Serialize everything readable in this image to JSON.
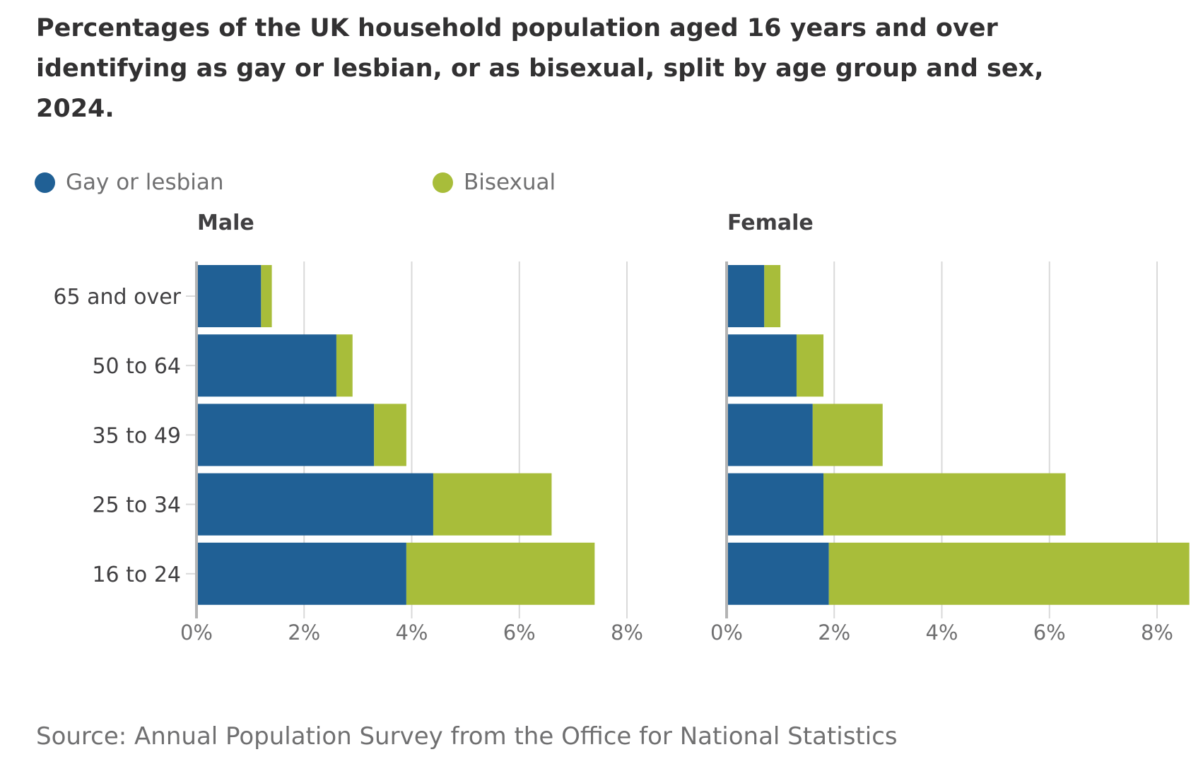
{
  "chart_data": {
    "type": "bar",
    "orientation": "horizontal",
    "stacked": true,
    "title": "Percentages of the UK household population aged 16 years and over identifying as gay or lesbian, or as bisexual, split by age group and sex, 2024.",
    "legend": {
      "placement": "top-left",
      "entries": [
        {
          "name": "Gay or lesbian",
          "color": "#206095"
        },
        {
          "name": "Bisexual",
          "color": "#A8BD3A"
        }
      ]
    },
    "categories": [
      "65 and over",
      "50 to 64",
      "35 to 49",
      "25 to 34",
      "16 to 24"
    ],
    "xlim": [
      0,
      8
    ],
    "xticks": [
      0,
      2,
      4,
      6,
      8
    ],
    "xtick_labels": [
      "0%",
      "2%",
      "4%",
      "6%",
      "8%"
    ],
    "grid": "vertical",
    "panels": [
      {
        "title": "Male",
        "series": [
          {
            "name": "Gay or lesbian",
            "values": [
              1.2,
              2.6,
              3.3,
              4.4,
              3.9
            ]
          },
          {
            "name": "Bisexual",
            "values": [
              0.2,
              0.3,
              0.6,
              2.2,
              3.5
            ]
          }
        ]
      },
      {
        "title": "Female",
        "series": [
          {
            "name": "Gay or lesbian",
            "values": [
              0.7,
              1.3,
              1.6,
              1.8,
              1.9
            ]
          },
          {
            "name": "Bisexual",
            "values": [
              0.3,
              0.5,
              1.3,
              4.5,
              6.7
            ]
          }
        ]
      }
    ],
    "source": "Source: Annual Population Survey from the Office for National Statistics"
  },
  "colors": {
    "gay_or_lesbian": "#206095",
    "bisexual": "#A8BD3A",
    "gridline": "#d9d9d9",
    "axis": "#b3b3b3",
    "tick_label": "#707071",
    "category_label": "#414042"
  }
}
